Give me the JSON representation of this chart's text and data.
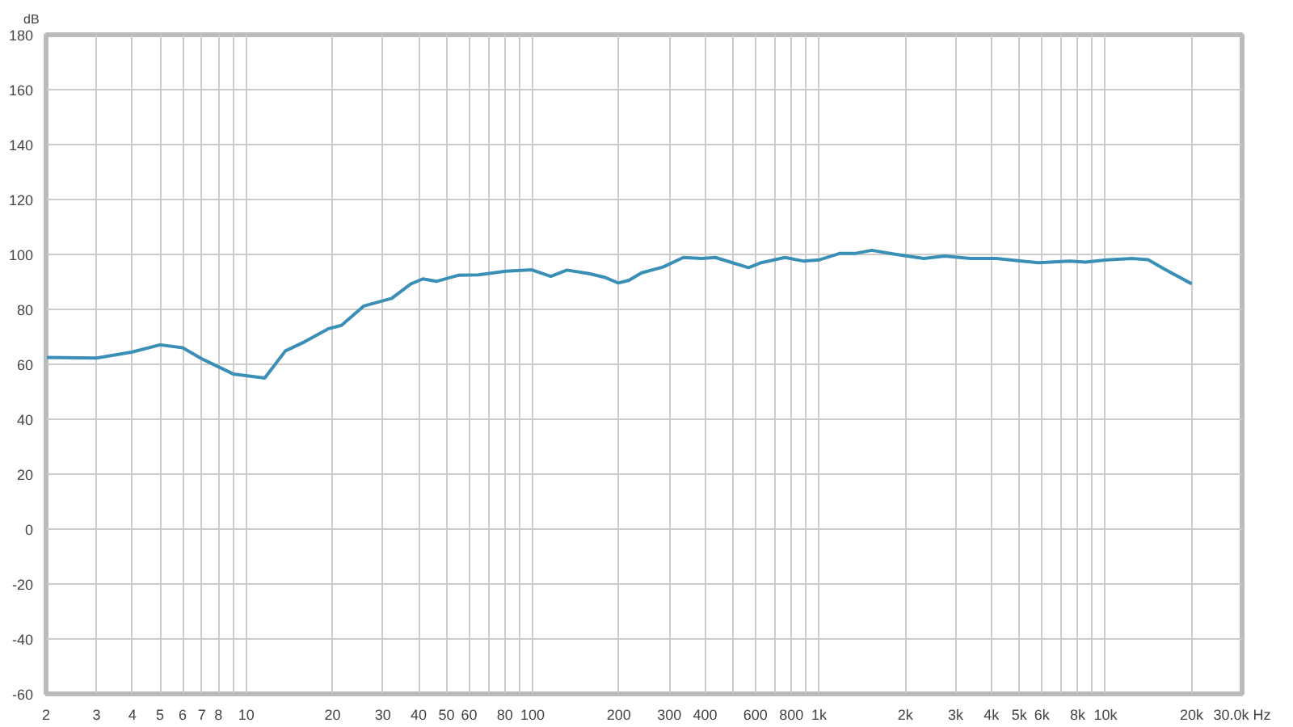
{
  "chart_data": {
    "type": "line",
    "ylabel": "dB",
    "log": "x",
    "grid": true,
    "marker": "none",
    "line_style": "solid",
    "xlim": [
      2,
      30000
    ],
    "ylim": [
      -60,
      180
    ],
    "xticks": [
      2,
      3,
      4,
      5,
      6,
      7,
      8,
      {
        "value": 9,
        "label": null
      },
      10,
      20,
      30,
      40,
      50,
      60,
      {
        "value": 70,
        "label": null
      },
      80,
      {
        "value": 90,
        "label": null
      },
      100,
      200,
      300,
      400,
      {
        "value": 500,
        "label": null
      },
      600,
      {
        "value": 700,
        "label": null
      },
      800,
      {
        "value": 900,
        "label": null
      },
      {
        "value": 1000,
        "label": "1k"
      },
      {
        "value": 2000,
        "label": "2k"
      },
      {
        "value": 3000,
        "label": "3k"
      },
      {
        "value": 4000,
        "label": "4k"
      },
      {
        "value": 5000,
        "label": "5k"
      },
      {
        "value": 6000,
        "label": "6k"
      },
      {
        "value": 7000,
        "label": null
      },
      {
        "value": 8000,
        "label": "8k"
      },
      {
        "value": 9000,
        "label": null
      },
      {
        "value": 10000,
        "label": "10k"
      },
      {
        "value": 20000,
        "label": "20k"
      },
      {
        "value": 30000,
        "label": "30.0k Hz"
      }
    ],
    "yticks": [
      -60,
      -40,
      -20,
      0,
      20,
      40,
      60,
      80,
      100,
      120,
      140,
      160,
      180
    ],
    "series": [
      {
        "color": "#3a8fb7",
        "x": [
          2,
          3,
          4,
          5,
          6,
          7,
          9,
          11.6,
          13.7,
          16,
          19.3,
          21.5,
          25.7,
          32.2,
          37.6,
          41.4,
          46.1,
          54.9,
          64.7,
          80.6,
          99.4,
          115.7,
          131.8,
          157.5,
          178,
          199,
          217,
          240,
          285,
          336,
          390,
          434,
          491,
          567,
          628,
          760,
          880,
          1000,
          1184,
          1345,
          1527,
          1806,
          2321,
          2744,
          3379,
          4163,
          5835,
          7508,
          8515,
          10100,
          12400,
          14100,
          16000,
          20000
        ],
        "values": [
          62.5,
          62.3,
          64.5,
          67.1,
          66,
          62,
          56.5,
          55,
          64.9,
          68.2,
          72.9,
          74.2,
          81.2,
          84,
          89.3,
          91.1,
          90.2,
          92.4,
          92.6,
          93.9,
          94.4,
          92,
          94.3,
          93,
          91.7,
          89.6,
          90.6,
          93.3,
          95.4,
          98.9,
          98.5,
          98.9,
          97.2,
          95.2,
          97,
          98.9,
          97.6,
          98,
          100.4,
          100.4,
          101.5,
          100.2,
          98.5,
          99.4,
          98.5,
          98.5,
          97,
          97.6,
          97.2,
          98,
          98.5,
          98.1,
          94.8,
          89.3
        ]
      }
    ]
  }
}
